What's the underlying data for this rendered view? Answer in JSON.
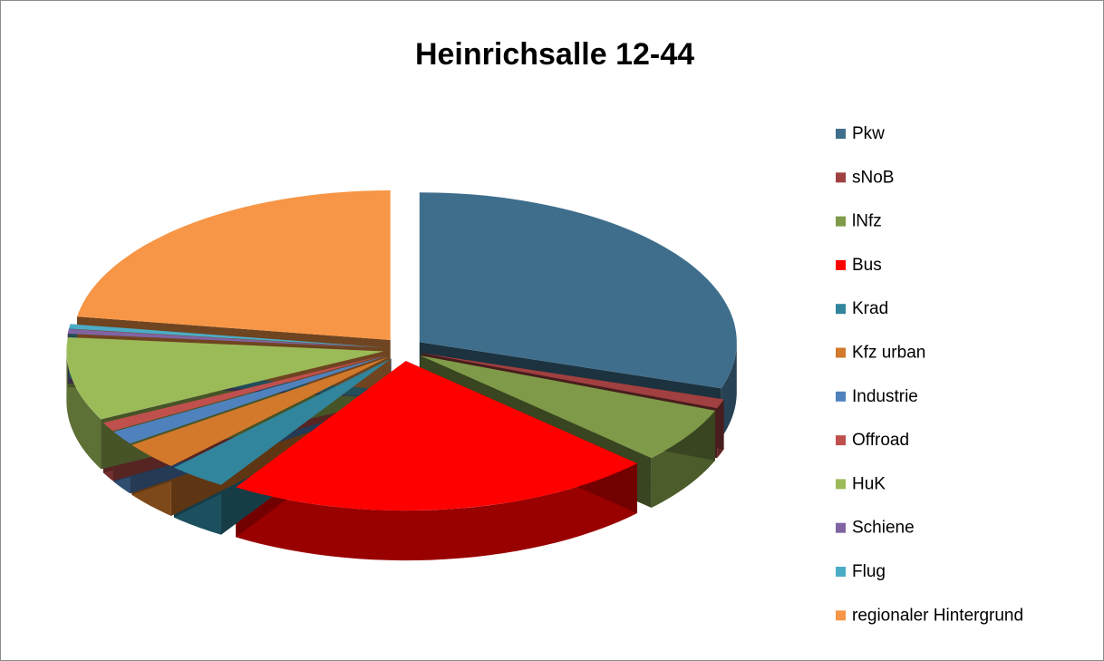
{
  "chart_data": {
    "type": "pie3d",
    "title": "Heinrichsalle 12-44",
    "categories": [
      "Pkw",
      "sNoB",
      "lNfz",
      "Bus",
      "Krad",
      "Kfz urban",
      "Industrie",
      "Offroad",
      "HuK",
      "Schiene",
      "Flug",
      "regionaler Hintergrund"
    ],
    "values": [
      30,
      1,
      6,
      22,
      3,
      3,
      1.5,
      1,
      9,
      0.5,
      0.5,
      22.5
    ],
    "colors": [
      "#3F6E8C",
      "#A04040",
      "#7F9A48",
      "#FF0000",
      "#31859C",
      "#D2792B",
      "#4F81BD",
      "#C0504D",
      "#9BBB59",
      "#8064A2",
      "#4BACC6",
      "#F79646"
    ],
    "legend": "right"
  }
}
